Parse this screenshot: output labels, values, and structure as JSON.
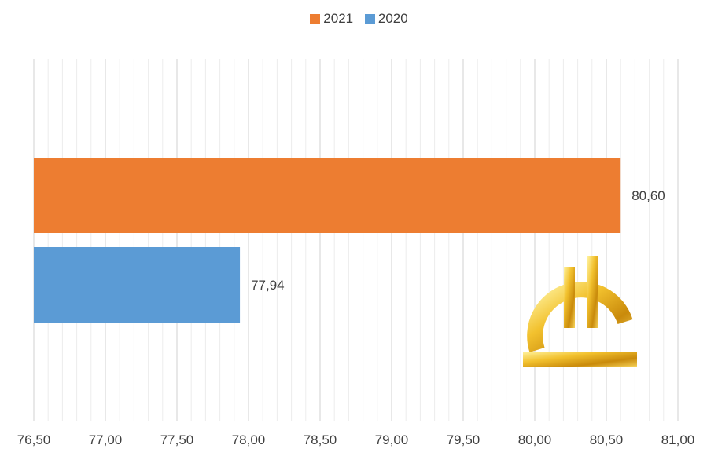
{
  "chart_data": {
    "type": "bar",
    "orientation": "horizontal",
    "xlim": [
      76.5,
      81.0
    ],
    "x_ticks": [
      "76,50",
      "77,00",
      "77,50",
      "78,00",
      "78,50",
      "79,00",
      "79,50",
      "80,00",
      "80,50",
      "81,00"
    ],
    "tick_values": [
      76.5,
      77.0,
      77.5,
      78.0,
      78.5,
      79.0,
      79.5,
      80.0,
      80.5,
      81.0
    ],
    "minor_grid_step": 0.1,
    "grid": true,
    "legend_position": "top",
    "series": [
      {
        "name": "2021",
        "value": 80.6,
        "label": "80,60",
        "color": "#ED7D31"
      },
      {
        "name": "2020",
        "value": 77.94,
        "label": "77,94",
        "color": "#5B9BD5"
      }
    ]
  },
  "decoration": {
    "icon": "lari-currency-icon",
    "color": "#E8B923"
  }
}
